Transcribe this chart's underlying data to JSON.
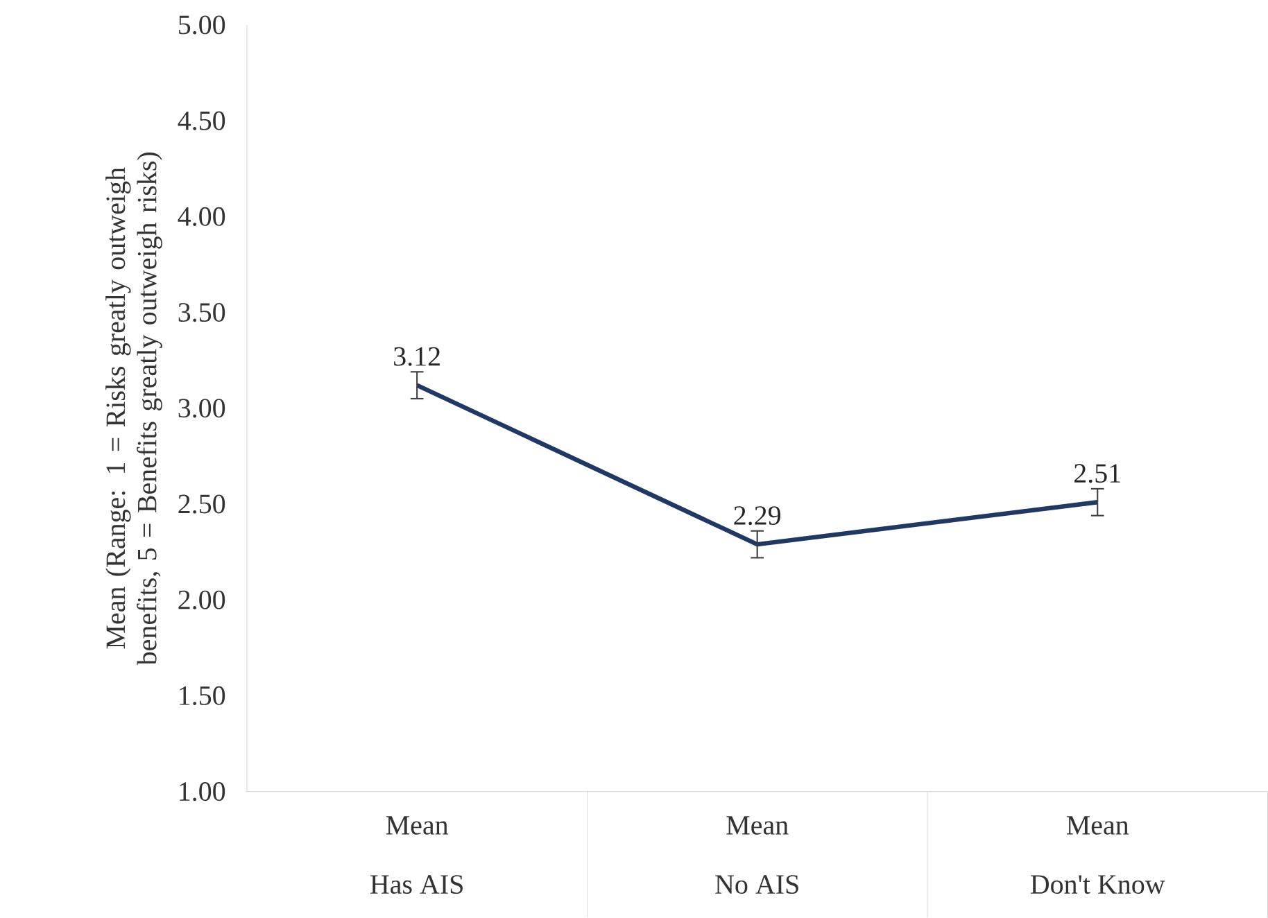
{
  "chart_data": {
    "type": "line",
    "ylabel": "Mean (Range: 1 = Risks greatly outweigh benefits, 5 = Benefits greatly outweigh risks)",
    "categories": [
      "Has AIS",
      "No AIS",
      "Don't Know"
    ],
    "annotations": [
      "Mean",
      "Mean",
      "Mean"
    ],
    "series": [
      {
        "color": "#203864",
        "values": [
          3.12,
          2.29,
          2.51
        ],
        "errors": [
          0.07,
          0.07,
          0.07
        ]
      }
    ],
    "ylim": [
      1,
      5
    ],
    "yticks": [
      {
        "value": 1,
        "label": "1.00"
      },
      {
        "value": 1.5,
        "label": "1.50"
      },
      {
        "value": 2,
        "label": "2.00"
      },
      {
        "value": 2.5,
        "label": "2.50"
      },
      {
        "value": 3,
        "label": "3.00"
      },
      {
        "value": 3.5,
        "label": "3.50"
      },
      {
        "value": 4,
        "label": "4.00"
      },
      {
        "value": 4.5,
        "label": "4.50"
      },
      {
        "value": 5,
        "label": "5.00"
      }
    ],
    "data_labels": true,
    "grid": false,
    "marker": "none",
    "line_style": "solid"
  }
}
